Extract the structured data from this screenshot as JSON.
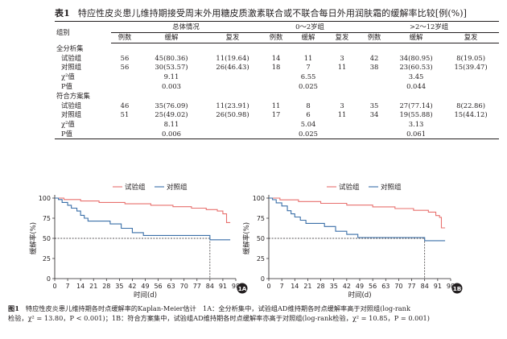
{
  "table": {
    "label": "表1",
    "title": "特应性皮炎患儿维持期接受周末外用糖皮质激素联合或不联合每日外用润肤霜的缓解率比较[例(%)]",
    "header": {
      "group_col": "组别",
      "col_groups": [
        "总体情况",
        "0～2岁组",
        ">2～12岁组"
      ],
      "sub": [
        "例数",
        "缓解",
        "复发"
      ]
    },
    "sections": [
      {
        "name": "全分析集",
        "rows": [
          {
            "label": "试验组",
            "cells": [
              "56",
              "45(80.36)",
              "11(19.64)",
              "14",
              "11",
              "3",
              "42",
              "34(80.95)",
              "8(19.05)"
            ]
          },
          {
            "label": "对照组",
            "cells": [
              "56",
              "30(53.57)",
              "26(46.43)",
              "18",
              "7",
              "11",
              "38",
              "23(60.53)",
              "15(39.47)"
            ]
          }
        ],
        "chi": {
          "label": "χ²值",
          "values": [
            "9.11",
            "6.55",
            "3.45"
          ]
        },
        "p": {
          "label": "P值",
          "values": [
            "0.003",
            "0.025",
            "0.044"
          ]
        }
      },
      {
        "name": "符合方案集",
        "rows": [
          {
            "label": "试验组",
            "cells": [
              "46",
              "35(76.09)",
              "11(23.91)",
              "11",
              "8",
              "3",
              "35",
              "27(77.14)",
              "8(22.86)"
            ]
          },
          {
            "label": "对照组",
            "cells": [
              "51",
              "25(49.02)",
              "26(50.98)",
              "17",
              "6",
              "11",
              "34",
              "19(55.88)",
              "15(44.12)"
            ]
          }
        ],
        "chi": {
          "label": "χ²值",
          "values": [
            "8.11",
            "5.04",
            "3.13"
          ]
        },
        "p": {
          "label": "P值",
          "values": [
            "0.006",
            "0.025",
            "0.061"
          ]
        }
      }
    ]
  },
  "figure": {
    "caption_label": "图1",
    "caption_line1": "特应性皮炎患儿维持期各时点缓解率的Kaplan-Meier估计　1A：全分析集中，试验组AD维持期各时点缓解率高于对照组(log-rank",
    "caption_line2": "检验，χ² = 13.80，P < 0.001)；1B：符合方案集中，试验组AD维持期各时点缓解率亦高于对照组(log-rank检验，χ² = 10.85，P = 0.001)",
    "colors": {
      "trial": "#e8706e",
      "control": "#3a6fa8",
      "reference": "#231f20"
    },
    "panels": [
      {
        "badge": "1A",
        "chart_data": {
          "type": "line",
          "xlabel": "时间(d)",
          "ylabel": "缓解率(%)",
          "xlim": [
            0,
            98
          ],
          "ylim": [
            0,
            100
          ],
          "x_ticks": [
            0,
            7,
            14,
            21,
            28,
            35,
            42,
            49,
            56,
            63,
            70,
            77,
            84,
            91,
            98
          ],
          "y_ticks": [
            0,
            25,
            50,
            75,
            100
          ],
          "reference": {
            "y": 50,
            "x": 84
          },
          "series": [
            {
              "name": "试验组",
              "points": [
                [
                  0,
                  100
                ],
                [
                  5,
                  100
                ],
                [
                  5,
                  98.2
                ],
                [
                  14,
                  98.2
                ],
                [
                  14,
                  96.4
                ],
                [
                  24,
                  96.4
                ],
                [
                  24,
                  94.6
                ],
                [
                  38,
                  94.6
                ],
                [
                  38,
                  92.9
                ],
                [
                  52,
                  92.9
                ],
                [
                  52,
                  91.1
                ],
                [
                  64,
                  91.1
                ],
                [
                  64,
                  89.3
                ],
                [
                  74,
                  89.3
                ],
                [
                  74,
                  87.5
                ],
                [
                  82,
                  87.5
                ],
                [
                  82,
                  85.7
                ],
                [
                  88,
                  85.7
                ],
                [
                  88,
                  83.9
                ],
                [
                  91,
                  83.9
                ],
                [
                  91,
                  80.4
                ],
                [
                  93,
                  80.4
                ],
                [
                  93,
                  69.6
                ],
                [
                  95,
                  69.6
                ]
              ]
            },
            {
              "name": "对照组",
              "points": [
                [
                  0,
                  100
                ],
                [
                  2,
                  100
                ],
                [
                  2,
                  98.2
                ],
                [
                  4,
                  98.2
                ],
                [
                  4,
                  94.6
                ],
                [
                  7,
                  94.6
                ],
                [
                  7,
                  91.1
                ],
                [
                  9,
                  91.1
                ],
                [
                  9,
                  87.5
                ],
                [
                  12,
                  87.5
                ],
                [
                  12,
                  83.9
                ],
                [
                  14,
                  83.9
                ],
                [
                  14,
                  78.6
                ],
                [
                  16,
                  78.6
                ],
                [
                  16,
                  75
                ],
                [
                  18,
                  75
                ],
                [
                  18,
                  71.4
                ],
                [
                  30,
                  71.4
                ],
                [
                  30,
                  67.9
                ],
                [
                  36,
                  67.9
                ],
                [
                  36,
                  62.5
                ],
                [
                  42,
                  62.5
                ],
                [
                  42,
                  57.1
                ],
                [
                  48,
                  57.1
                ],
                [
                  48,
                  53.6
                ],
                [
                  84,
                  53.6
                ],
                [
                  84,
                  48.2
                ],
                [
                  95,
                  48.2
                ]
              ]
            }
          ]
        }
      },
      {
        "badge": "1B",
        "chart_data": {
          "type": "line",
          "xlabel": "时间(d)",
          "ylabel": "缓解率(%)",
          "xlim": [
            0,
            98
          ],
          "ylim": [
            0,
            100
          ],
          "x_ticks": [
            0,
            7,
            14,
            21,
            28,
            35,
            42,
            49,
            56,
            63,
            70,
            77,
            84,
            91,
            98
          ],
          "y_ticks": [
            0,
            25,
            50,
            75,
            100
          ],
          "reference": {
            "y": 50,
            "x": 84
          },
          "series": [
            {
              "name": "试验组",
              "points": [
                [
                  0,
                  100
                ],
                [
                  6,
                  100
                ],
                [
                  6,
                  97.8
                ],
                [
                  16,
                  97.8
                ],
                [
                  16,
                  95.7
                ],
                [
                  28,
                  95.7
                ],
                [
                  28,
                  93.5
                ],
                [
                  42,
                  93.5
                ],
                [
                  42,
                  91.3
                ],
                [
                  56,
                  91.3
                ],
                [
                  56,
                  89.1
                ],
                [
                  68,
                  89.1
                ],
                [
                  68,
                  87
                ],
                [
                  78,
                  87
                ],
                [
                  78,
                  84.8
                ],
                [
                  86,
                  84.8
                ],
                [
                  86,
                  82.6
                ],
                [
                  90,
                  82.6
                ],
                [
                  90,
                  78.3
                ],
                [
                  92,
                  78.3
                ],
                [
                  92,
                  76.1
                ],
                [
                  93,
                  76.1
                ],
                [
                  93,
                  63
                ],
                [
                  95,
                  63
                ]
              ]
            },
            {
              "name": "对照组",
              "points": [
                [
                  0,
                  100
                ],
                [
                  2,
                  100
                ],
                [
                  2,
                  98
                ],
                [
                  4,
                  98
                ],
                [
                  4,
                  94.1
                ],
                [
                  7,
                  94.1
                ],
                [
                  7,
                  90.2
                ],
                [
                  10,
                  90.2
                ],
                [
                  10,
                  84.3
                ],
                [
                  12,
                  84.3
                ],
                [
                  12,
                  80.4
                ],
                [
                  14,
                  80.4
                ],
                [
                  14,
                  76.5
                ],
                [
                  17,
                  76.5
                ],
                [
                  17,
                  72.5
                ],
                [
                  20,
                  72.5
                ],
                [
                  20,
                  68.6
                ],
                [
                  30,
                  68.6
                ],
                [
                  30,
                  64.7
                ],
                [
                  36,
                  64.7
                ],
                [
                  36,
                  58.8
                ],
                [
                  42,
                  58.8
                ],
                [
                  42,
                  54.9
                ],
                [
                  48,
                  54.9
                ],
                [
                  48,
                  51
                ],
                [
                  84,
                  51
                ],
                [
                  84,
                  47.1
                ],
                [
                  95,
                  47.1
                ]
              ]
            }
          ]
        }
      }
    ]
  }
}
